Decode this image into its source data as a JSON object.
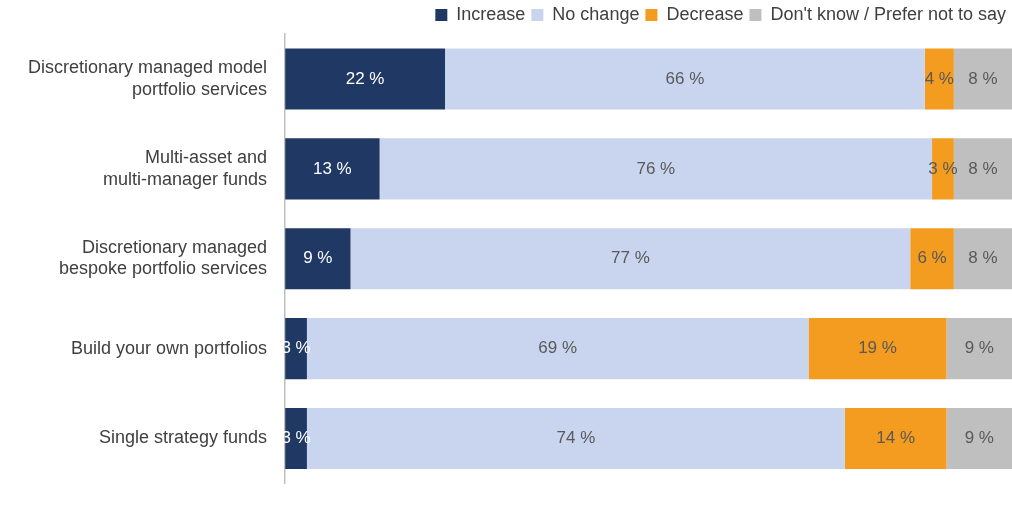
{
  "chart_data": {
    "type": "bar",
    "orientation": "horizontal",
    "stacked": true,
    "legend": "top right",
    "tick_labels": "y",
    "xlim": [
      0,
      100
    ],
    "categories": [
      "Discretionary managed model portfolio services",
      "Multi-asset and multi-manager funds",
      "Discretionary managed bespoke portfolio services",
      "Build your own portfolios",
      "Single strategy funds"
    ],
    "series": [
      {
        "name": "Increase",
        "color": "#1f3864",
        "values": [
          22,
          13,
          9,
          3,
          3
        ],
        "value_labels": [
          "22 %",
          "13 %",
          "9 %",
          "3 %",
          "3 %"
        ]
      },
      {
        "name": "No change",
        "color": "#c9d5ee",
        "values": [
          66,
          76,
          77,
          69,
          74
        ],
        "value_labels": [
          "66 %",
          "76 %",
          "77 %",
          "69 %",
          "74 %"
        ]
      },
      {
        "name": "Decrease",
        "color": "#f39c1f",
        "values": [
          4,
          3,
          6,
          19,
          14
        ],
        "value_labels": [
          "4 %",
          "3 %",
          "6 %",
          "19 %",
          "14 %"
        ]
      },
      {
        "name": "Don't know / Prefer not to say",
        "color": "#bfbfbf",
        "values": [
          8,
          8,
          8,
          9,
          9
        ],
        "value_labels": [
          "8 %",
          "8 %",
          "8 %",
          "9 %",
          "9 %"
        ]
      }
    ]
  }
}
